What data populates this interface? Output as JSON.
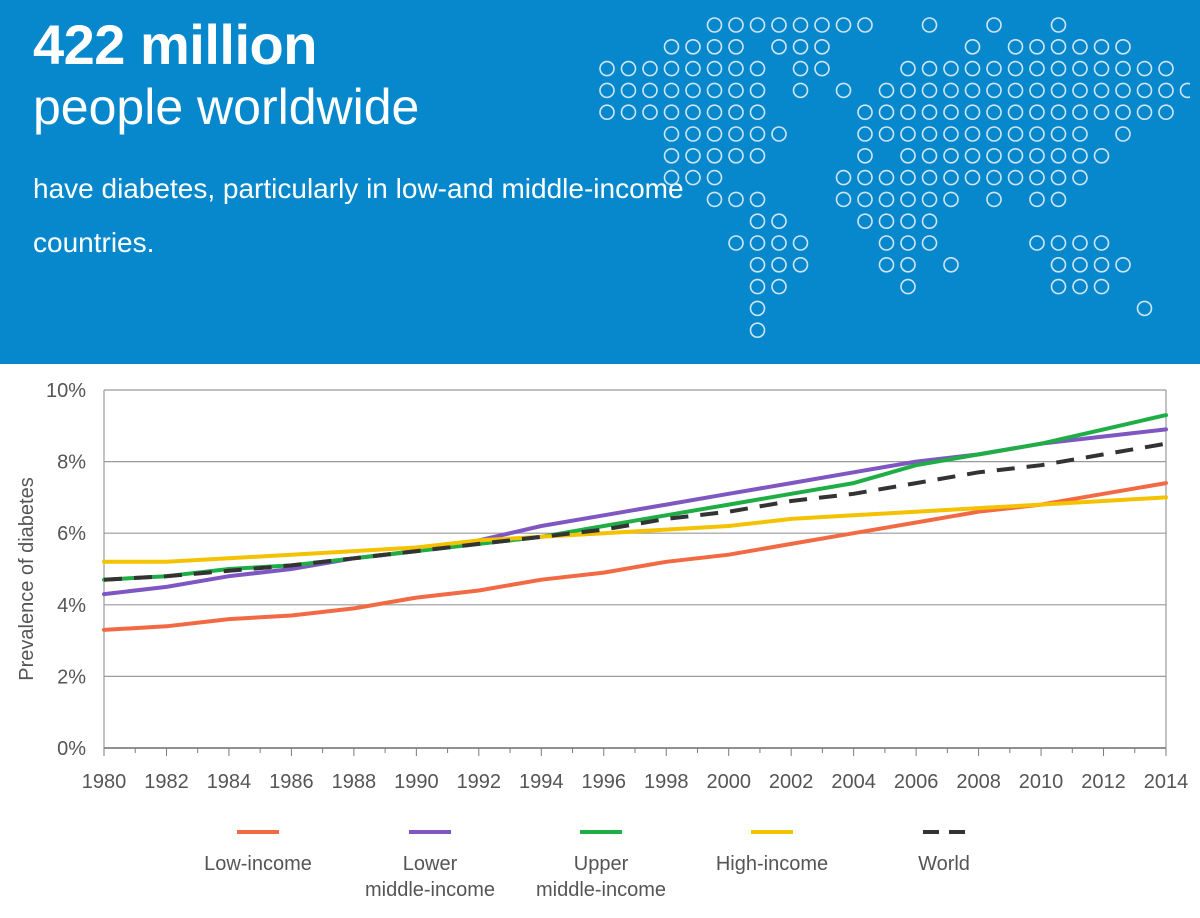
{
  "banner": {
    "headline": "422 million",
    "subhead": "people worldwide",
    "body": "have diabetes, particularly in low-and middle-income countries.",
    "background": "#0788cc",
    "map_icon": "world-dot-map-icon"
  },
  "chart_data": {
    "type": "line",
    "title": "",
    "xlabel": "",
    "ylabel": "Prevalence of diabetes",
    "ylim": [
      0,
      10
    ],
    "yticks": [
      "0%",
      "2%",
      "4%",
      "6%",
      "8%",
      "10%"
    ],
    "x": [
      1980,
      1982,
      1984,
      1986,
      1988,
      1990,
      1992,
      1994,
      1996,
      1998,
      2000,
      2002,
      2004,
      2006,
      2008,
      2010,
      2012,
      2014
    ],
    "legend_position": "bottom",
    "series": [
      {
        "name": "Low-income",
        "color": "#f26a43",
        "dash": false,
        "values": [
          3.3,
          3.4,
          3.6,
          3.7,
          3.9,
          4.2,
          4.4,
          4.7,
          4.9,
          5.2,
          5.4,
          5.7,
          6.0,
          6.3,
          6.6,
          6.8,
          7.1,
          7.4
        ]
      },
      {
        "name": "Lower middle-income",
        "color": "#7e57c2",
        "dash": false,
        "values": [
          4.3,
          4.5,
          4.8,
          5.0,
          5.3,
          5.5,
          5.8,
          6.2,
          6.5,
          6.8,
          7.1,
          7.4,
          7.7,
          8.0,
          8.2,
          8.5,
          8.7,
          8.9
        ]
      },
      {
        "name": "Upper middle-income",
        "color": "#1fae45",
        "dash": false,
        "values": [
          4.7,
          4.8,
          5.0,
          5.1,
          5.3,
          5.5,
          5.7,
          5.9,
          6.2,
          6.5,
          6.8,
          7.1,
          7.4,
          7.9,
          8.2,
          8.5,
          8.9,
          9.3
        ]
      },
      {
        "name": "High-income",
        "color": "#f3c200",
        "dash": false,
        "values": [
          5.2,
          5.2,
          5.3,
          5.4,
          5.5,
          5.6,
          5.8,
          5.9,
          6.0,
          6.1,
          6.2,
          6.4,
          6.5,
          6.6,
          6.7,
          6.8,
          6.9,
          7.0
        ]
      },
      {
        "name": "World",
        "color": "#333333",
        "dash": true,
        "values": [
          4.7,
          4.8,
          4.95,
          5.1,
          5.3,
          5.5,
          5.7,
          5.9,
          6.1,
          6.4,
          6.6,
          6.9,
          7.1,
          7.4,
          7.7,
          7.9,
          8.2,
          8.5
        ]
      }
    ],
    "legend_labels": [
      [
        "Low-income"
      ],
      [
        "Lower",
        "middle-income"
      ],
      [
        "Upper",
        "middle-income"
      ],
      [
        "High-income"
      ],
      [
        "World"
      ]
    ]
  }
}
